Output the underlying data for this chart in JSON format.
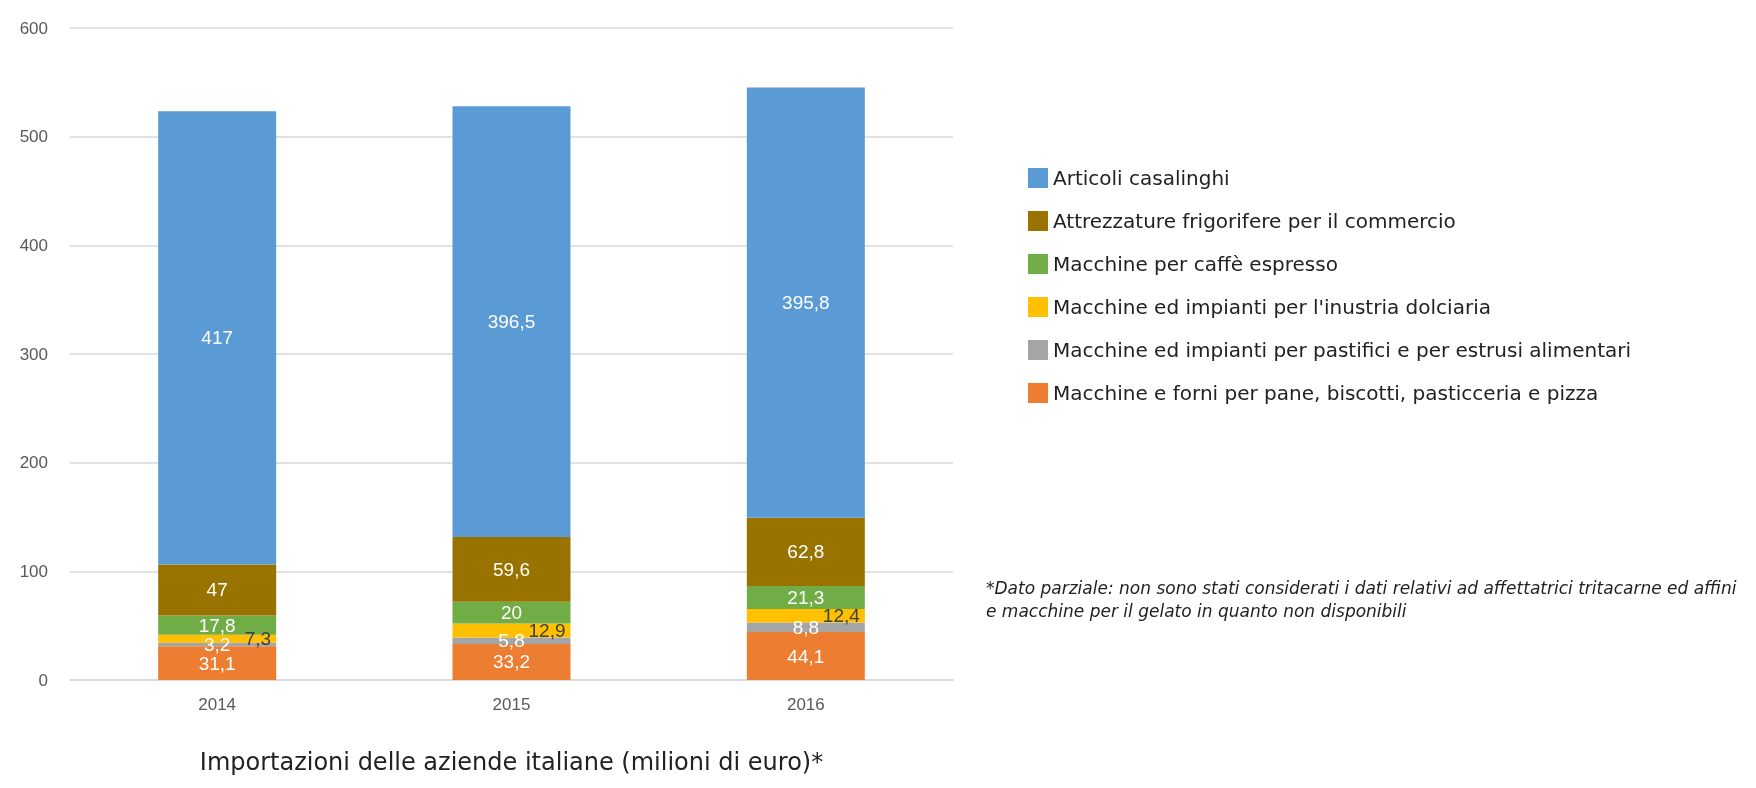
{
  "chart_data": {
    "type": "bar",
    "stacked": true,
    "xlabel": "Importazioni delle aziende italiane (milioni di euro)*",
    "categories": [
      "2014",
      "2015",
      "2016"
    ],
    "series": [
      {
        "name": "Macchine e forni per pane, biscotti, pasticceria e pizza",
        "color": "#ed7d31",
        "values": [
          31.1,
          33.2,
          44.1
        ],
        "value_labels": [
          "31,1",
          "33,2",
          "44,1"
        ]
      },
      {
        "name": "Macchine ed impianti per pastifici e per estrusi alimentari",
        "color": "#a5a5a5",
        "values": [
          3.2,
          5.8,
          8.8
        ],
        "value_labels": [
          "3,2",
          "5,8",
          "8,8"
        ]
      },
      {
        "name": "Macchine ed impianti per l'inustria dolciaria",
        "color": "#ffc000",
        "values": [
          7.3,
          12.9,
          12.4
        ],
        "value_labels": [
          "7,3",
          "12,9",
          "12,4"
        ]
      },
      {
        "name": "Macchine per caffè espresso",
        "color": "#70ad47",
        "values": [
          17.8,
          20,
          21.3
        ],
        "value_labels": [
          "17,8",
          "20",
          "21,3"
        ]
      },
      {
        "name": "Attrezzature frigorifere per il commercio",
        "color": "#997300",
        "values": [
          47,
          59.6,
          62.8
        ],
        "value_labels": [
          "47",
          "59,6",
          "62,8"
        ]
      },
      {
        "name": "Articoli casalinghi",
        "color": "#5b9bd5",
        "values": [
          417,
          396.5,
          395.8
        ],
        "value_labels": [
          "417",
          "396,5",
          "395,8"
        ]
      }
    ],
    "ylim": [
      0,
      600
    ],
    "yticks": [
      0,
      100,
      200,
      300,
      400,
      500,
      600
    ],
    "grid": "y",
    "legend": "right",
    "annotations": [
      "*Dato parziale: non sono stati considerati i dati relativi ad affettatrici tritacarne ed affini e macchine per il gelato in quanto non disponibili"
    ]
  }
}
